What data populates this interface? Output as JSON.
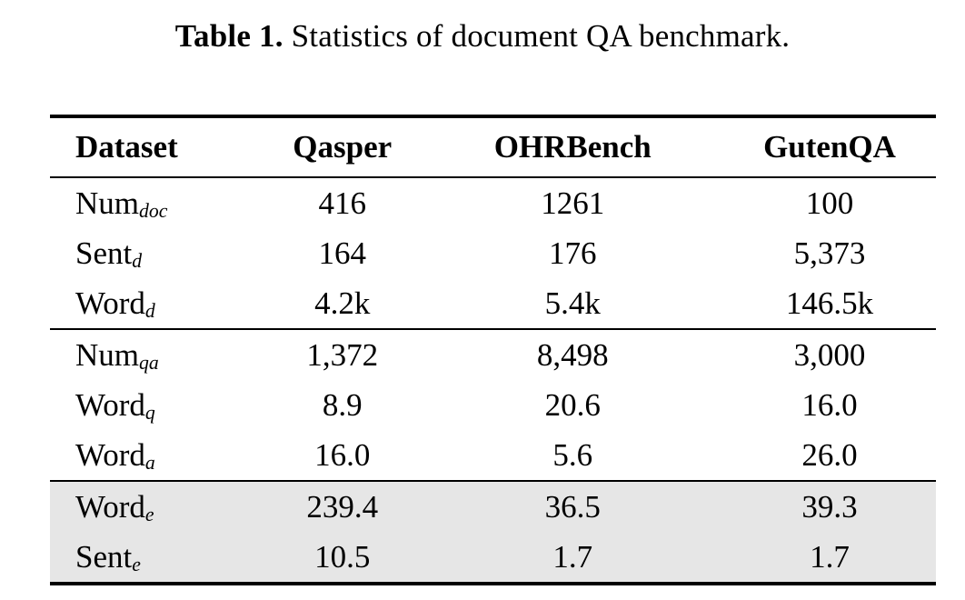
{
  "caption": {
    "label": "Table 1.",
    "text": " Statistics of document QA benchmark."
  },
  "table": {
    "columns": [
      "Dataset",
      "Qasper",
      "OHRBench",
      "GutenQA"
    ],
    "rows": [
      {
        "label": "Num",
        "sub": "doc",
        "values": [
          "416",
          "1261",
          "100"
        ],
        "shaded": false,
        "group_end": false
      },
      {
        "label": "Sent",
        "sub": "d",
        "values": [
          "164",
          "176",
          "5,373"
        ],
        "shaded": false,
        "group_end": false
      },
      {
        "label": "Word",
        "sub": "d",
        "values": [
          "4.2k",
          "5.4k",
          "146.5k"
        ],
        "shaded": false,
        "group_end": true
      },
      {
        "label": "Num",
        "sub": "qa",
        "values": [
          "1,372",
          "8,498",
          "3,000"
        ],
        "shaded": false,
        "group_end": false
      },
      {
        "label": "Word",
        "sub": "q",
        "values": [
          "8.9",
          "20.6",
          "16.0"
        ],
        "shaded": false,
        "group_end": false
      },
      {
        "label": "Word",
        "sub": "a",
        "values": [
          "16.0",
          "5.6",
          "26.0"
        ],
        "shaded": false,
        "group_end": true
      },
      {
        "label": "Word",
        "sub": "e",
        "values": [
          "239.4",
          "36.5",
          "39.3"
        ],
        "shaded": true,
        "group_end": false
      },
      {
        "label": "Sent",
        "sub": "e",
        "values": [
          "10.5",
          "1.7",
          "1.7"
        ],
        "shaded": true,
        "group_end": false
      }
    ],
    "colors": {
      "row_shading": "#e6e6e6",
      "rule": "#000000",
      "text": "#000000"
    }
  }
}
